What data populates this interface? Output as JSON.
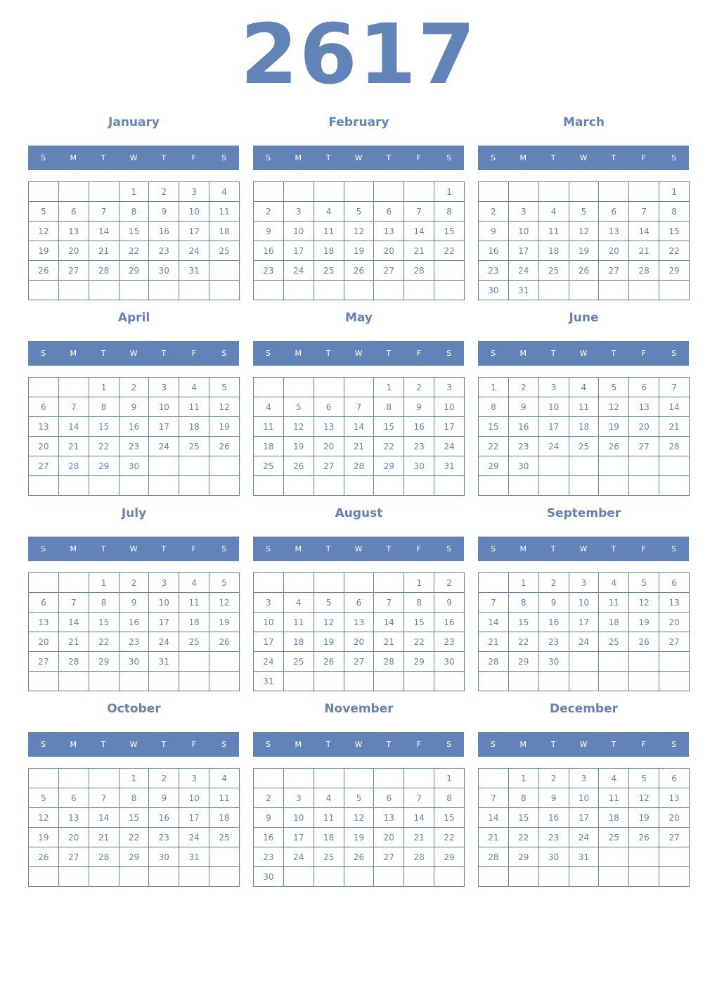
{
  "year": "2617",
  "weekday_labels": [
    "S",
    "M",
    "T",
    "W",
    "T",
    "F",
    "S"
  ],
  "accent_color": "#6283b7",
  "months": [
    {
      "name": "January",
      "weeks": [
        [
          null,
          null,
          null,
          1,
          2,
          3,
          4
        ],
        [
          5,
          6,
          7,
          8,
          9,
          10,
          11
        ],
        [
          12,
          13,
          14,
          15,
          16,
          17,
          18
        ],
        [
          19,
          20,
          21,
          22,
          23,
          24,
          25
        ],
        [
          26,
          27,
          28,
          29,
          30,
          31,
          null
        ],
        [
          null,
          null,
          null,
          null,
          null,
          null,
          null
        ]
      ]
    },
    {
      "name": "February",
      "weeks": [
        [
          null,
          null,
          null,
          null,
          null,
          null,
          1
        ],
        [
          2,
          3,
          4,
          5,
          6,
          7,
          8
        ],
        [
          9,
          10,
          11,
          12,
          13,
          14,
          15
        ],
        [
          16,
          17,
          18,
          19,
          20,
          21,
          22
        ],
        [
          23,
          24,
          25,
          26,
          27,
          28,
          null
        ],
        [
          null,
          null,
          null,
          null,
          null,
          null,
          null
        ]
      ]
    },
    {
      "name": "March",
      "weeks": [
        [
          null,
          null,
          null,
          null,
          null,
          null,
          1
        ],
        [
          2,
          3,
          4,
          5,
          6,
          7,
          8
        ],
        [
          9,
          10,
          11,
          12,
          13,
          14,
          15
        ],
        [
          16,
          17,
          18,
          19,
          20,
          21,
          22
        ],
        [
          23,
          24,
          25,
          26,
          27,
          28,
          29
        ],
        [
          30,
          31,
          null,
          null,
          null,
          null,
          null
        ]
      ]
    },
    {
      "name": "April",
      "weeks": [
        [
          null,
          null,
          1,
          2,
          3,
          4,
          5
        ],
        [
          6,
          7,
          8,
          9,
          10,
          11,
          12
        ],
        [
          13,
          14,
          15,
          16,
          17,
          18,
          19
        ],
        [
          20,
          21,
          22,
          23,
          24,
          25,
          26
        ],
        [
          27,
          28,
          29,
          30,
          null,
          null,
          null
        ],
        [
          null,
          null,
          null,
          null,
          null,
          null,
          null
        ]
      ]
    },
    {
      "name": "May",
      "weeks": [
        [
          null,
          null,
          null,
          null,
          1,
          2,
          3
        ],
        [
          4,
          5,
          6,
          7,
          8,
          9,
          10
        ],
        [
          11,
          12,
          13,
          14,
          15,
          16,
          17
        ],
        [
          18,
          19,
          20,
          21,
          22,
          23,
          24
        ],
        [
          25,
          26,
          27,
          28,
          29,
          30,
          31
        ],
        [
          null,
          null,
          null,
          null,
          null,
          null,
          null
        ]
      ]
    },
    {
      "name": "June",
      "weeks": [
        [
          1,
          2,
          3,
          4,
          5,
          6,
          7
        ],
        [
          8,
          9,
          10,
          11,
          12,
          13,
          14
        ],
        [
          15,
          16,
          17,
          18,
          19,
          20,
          21
        ],
        [
          22,
          23,
          24,
          25,
          26,
          27,
          28
        ],
        [
          29,
          30,
          null,
          null,
          null,
          null,
          null
        ],
        [
          null,
          null,
          null,
          null,
          null,
          null,
          null
        ]
      ]
    },
    {
      "name": "July",
      "weeks": [
        [
          null,
          null,
          1,
          2,
          3,
          4,
          5
        ],
        [
          6,
          7,
          8,
          9,
          10,
          11,
          12
        ],
        [
          13,
          14,
          15,
          16,
          17,
          18,
          19
        ],
        [
          20,
          21,
          22,
          23,
          24,
          25,
          26
        ],
        [
          27,
          28,
          29,
          30,
          31,
          null,
          null
        ],
        [
          null,
          null,
          null,
          null,
          null,
          null,
          null
        ]
      ]
    },
    {
      "name": "August",
      "weeks": [
        [
          null,
          null,
          null,
          null,
          null,
          1,
          2
        ],
        [
          3,
          4,
          5,
          6,
          7,
          8,
          9
        ],
        [
          10,
          11,
          12,
          13,
          14,
          15,
          16
        ],
        [
          17,
          18,
          19,
          20,
          21,
          22,
          23
        ],
        [
          24,
          25,
          26,
          27,
          28,
          29,
          30
        ],
        [
          31,
          null,
          null,
          null,
          null,
          null,
          null
        ]
      ]
    },
    {
      "name": "September",
      "weeks": [
        [
          null,
          1,
          2,
          3,
          4,
          5,
          6
        ],
        [
          7,
          8,
          9,
          10,
          11,
          12,
          13
        ],
        [
          14,
          15,
          16,
          17,
          18,
          19,
          20
        ],
        [
          21,
          22,
          23,
          24,
          25,
          26,
          27
        ],
        [
          28,
          29,
          30,
          null,
          null,
          null,
          null
        ],
        [
          null,
          null,
          null,
          null,
          null,
          null,
          null
        ]
      ]
    },
    {
      "name": "October",
      "weeks": [
        [
          null,
          null,
          null,
          1,
          2,
          3,
          4
        ],
        [
          5,
          6,
          7,
          8,
          9,
          10,
          11
        ],
        [
          12,
          13,
          14,
          15,
          16,
          17,
          18
        ],
        [
          19,
          20,
          21,
          22,
          23,
          24,
          25
        ],
        [
          26,
          27,
          28,
          29,
          30,
          31,
          null
        ],
        [
          null,
          null,
          null,
          null,
          null,
          null,
          null
        ]
      ]
    },
    {
      "name": "November",
      "weeks": [
        [
          null,
          null,
          null,
          null,
          null,
          null,
          1
        ],
        [
          2,
          3,
          4,
          5,
          6,
          7,
          8
        ],
        [
          9,
          10,
          11,
          12,
          13,
          14,
          15
        ],
        [
          16,
          17,
          18,
          19,
          20,
          21,
          22
        ],
        [
          23,
          24,
          25,
          26,
          27,
          28,
          29
        ],
        [
          30,
          null,
          null,
          null,
          null,
          null,
          null
        ]
      ]
    },
    {
      "name": "December",
      "weeks": [
        [
          null,
          1,
          2,
          3,
          4,
          5,
          6
        ],
        [
          7,
          8,
          9,
          10,
          11,
          12,
          13
        ],
        [
          14,
          15,
          16,
          17,
          18,
          19,
          20
        ],
        [
          21,
          22,
          23,
          24,
          25,
          26,
          27
        ],
        [
          28,
          29,
          30,
          31,
          null,
          null,
          null
        ],
        [
          null,
          null,
          null,
          null,
          null,
          null,
          null
        ]
      ]
    }
  ]
}
